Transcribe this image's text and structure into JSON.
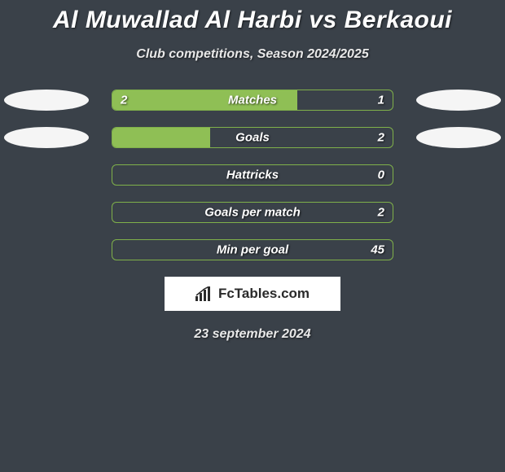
{
  "title": "Al Muwallad Al Harbi vs Berkaoui",
  "subtitle": "Club competitions, Season 2024/2025",
  "date": "23 september 2024",
  "logo": {
    "text": "FcTables.com"
  },
  "colors": {
    "background": "#3a4149",
    "bar_border": "#7fb04a",
    "bar_fill": "#8fbf55",
    "flag": "#f5f5f5",
    "logo_bg": "#ffffff",
    "logo_text": "#2a2a2a",
    "text": "#ffffff"
  },
  "rows": [
    {
      "label": "Matches",
      "left": "2",
      "right": "1",
      "fill_pct": 66,
      "show_flags": true
    },
    {
      "label": "Goals",
      "left": "",
      "right": "2",
      "fill_pct": 35,
      "show_flags": true
    },
    {
      "label": "Hattricks",
      "left": "",
      "right": "0",
      "fill_pct": 0,
      "show_flags": false
    },
    {
      "label": "Goals per match",
      "left": "",
      "right": "2",
      "fill_pct": 0,
      "show_flags": false
    },
    {
      "label": "Min per goal",
      "left": "",
      "right": "45",
      "fill_pct": 0,
      "show_flags": false
    }
  ]
}
